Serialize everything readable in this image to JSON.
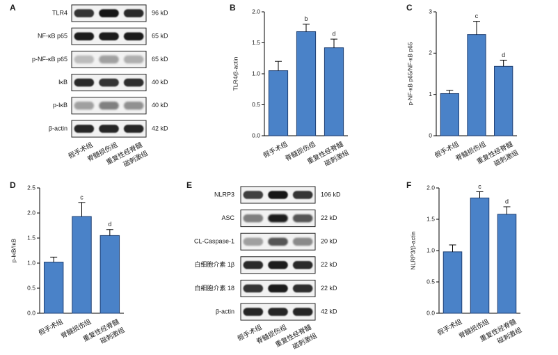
{
  "groups": [
    "假手术组",
    "脊髓损伤组",
    "重复性经脊髓",
    "磁刺激组"
  ],
  "blot_a": {
    "letter": "A",
    "rows": [
      {
        "label": "TLR4",
        "mw": "96 kD",
        "intensity": [
          0.85,
          1.0,
          0.9
        ],
        "blur": 0.9
      },
      {
        "label": "NF-κB p65",
        "mw": "65 kD",
        "intensity": [
          0.95,
          0.95,
          0.95
        ],
        "blur": 0.9
      },
      {
        "label": "p-NF-κB p65",
        "mw": "65 kD",
        "intensity": [
          0.22,
          0.35,
          0.28
        ],
        "blur": 1.2
      },
      {
        "label": "IκB",
        "mw": "40 kD",
        "intensity": [
          0.9,
          0.85,
          0.88
        ],
        "blur": 0.8
      },
      {
        "label": "p-IκB",
        "mw": "40 kD",
        "intensity": [
          0.35,
          0.5,
          0.42
        ],
        "blur": 1.2
      },
      {
        "label": "β-actin",
        "mw": "42 kD",
        "intensity": [
          0.92,
          0.92,
          0.92
        ],
        "blur": 0.8
      }
    ]
  },
  "blot_e": {
    "letter": "E",
    "rows": [
      {
        "label": "NLRP3",
        "mw": "106 kD",
        "intensity": [
          0.8,
          1.0,
          0.85
        ],
        "blur": 0.9
      },
      {
        "label": "ASC",
        "mw": "22 kD",
        "intensity": [
          0.5,
          0.95,
          0.7
        ],
        "blur": 1.0
      },
      {
        "label": "CL-Caspase-1",
        "mw": "20 kD",
        "intensity": [
          0.35,
          0.7,
          0.45
        ],
        "blur": 1.1
      },
      {
        "label": "白细胞介素 1β",
        "mw": "22 kD",
        "intensity": [
          0.9,
          0.95,
          0.9
        ],
        "blur": 0.9
      },
      {
        "label": "白细胞介素 18",
        "mw": "22 kD",
        "intensity": [
          0.85,
          0.95,
          0.88
        ],
        "blur": 0.9
      },
      {
        "label": "β-actin",
        "mw": "42 kD",
        "intensity": [
          0.92,
          0.92,
          0.92
        ],
        "blur": 0.8
      }
    ]
  },
  "chart_data": [
    {
      "letter": "B",
      "type": "bar",
      "ylabel": "TLR4/β-actin",
      "ylim": [
        0,
        2.0
      ],
      "ticks": [
        0,
        0.5,
        1.0,
        1.5,
        2.0
      ],
      "values": [
        1.05,
        1.68,
        1.42
      ],
      "errors": [
        0.15,
        0.12,
        0.14
      ],
      "labels": [
        "",
        "b",
        "d"
      ],
      "color": "#4a82c8"
    },
    {
      "letter": "C",
      "type": "bar",
      "ylabel": "p-NF-κB p65/NF-κB p65",
      "ylim": [
        0,
        3
      ],
      "ticks": [
        0,
        1,
        2,
        3
      ],
      "values": [
        1.02,
        2.45,
        1.68
      ],
      "errors": [
        0.08,
        0.32,
        0.15
      ],
      "labels": [
        "",
        "c",
        "d"
      ],
      "color": "#4a82c8"
    },
    {
      "letter": "D",
      "type": "bar",
      "ylabel": "p-IκB/IκB",
      "ylim": [
        0,
        2.5
      ],
      "ticks": [
        0,
        0.5,
        1.0,
        1.5,
        2.0,
        2.5
      ],
      "values": [
        1.02,
        1.93,
        1.55
      ],
      "errors": [
        0.1,
        0.28,
        0.12
      ],
      "labels": [
        "",
        "c",
        "d"
      ],
      "color": "#4a82c8"
    },
    {
      "letter": "F",
      "type": "bar",
      "ylabel": "NLRP3/β-actin",
      "ylim": [
        0,
        2.0
      ],
      "ticks": [
        0,
        0.5,
        1.0,
        1.5,
        2.0
      ],
      "values": [
        0.98,
        1.84,
        1.58
      ],
      "errors": [
        0.11,
        0.1,
        0.12
      ],
      "labels": [
        "",
        "c",
        "d"
      ],
      "color": "#4a82c8"
    }
  ]
}
